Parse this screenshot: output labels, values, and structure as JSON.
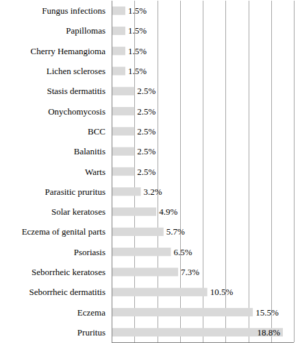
{
  "chart_data": {
    "type": "bar",
    "orientation": "horizontal",
    "categories": [
      "Fungus infections",
      "Papillomas",
      "Cherry Hemangioma",
      "Lichen scleroses",
      "Stasis dermatitis",
      "Onychomycosis",
      "BCC",
      "Balanitis",
      "Warts",
      "Parasitic pruritus",
      "Solar keratoses",
      "Eczema of genital parts",
      "Psoriasis",
      "Seborrheic keratoses",
      "Seborrheic dermatitis",
      "Eczema",
      "Pruritus"
    ],
    "values": [
      1.5,
      1.5,
      1.5,
      1.5,
      2.5,
      2.5,
      2.5,
      2.5,
      2.5,
      3.2,
      4.9,
      5.7,
      6.5,
      7.3,
      10.5,
      15.5,
      18.8
    ],
    "value_labels": [
      "1.5%",
      "1.5%",
      "1.5%",
      "1.5%",
      "2.5%",
      "2.5%",
      "2.5%",
      "2.5%",
      "2.5%",
      "3.2%",
      "4.9%",
      "5.7%",
      "6.5%",
      "7.3%",
      "10.5%",
      "15.5%",
      "18.8%"
    ],
    "color": "#d9d9d9",
    "xlim": [
      0,
      20
    ],
    "xticks": [
      0,
      2.5,
      5,
      7.5,
      10,
      12.5,
      15,
      17.5,
      20
    ],
    "grid": true,
    "data_labels": true,
    "tick_labels": false
  }
}
